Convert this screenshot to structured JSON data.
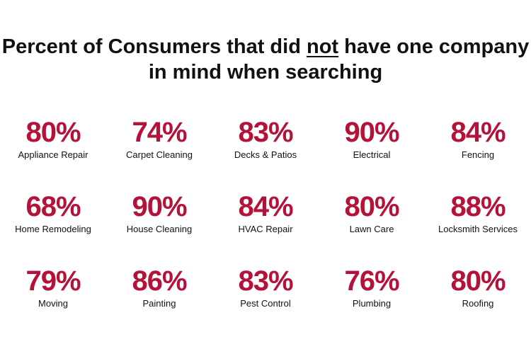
{
  "chart_data": {
    "type": "table",
    "title_parts": {
      "before": "Percent of Consumers that did ",
      "emphasis": "not",
      "after": " have one company in mind when searching"
    },
    "unit": "%",
    "categories": [
      "Appliance Repair",
      "Carpet Cleaning",
      "Decks & Patios",
      "Electrical",
      "Fencing",
      "Home Remodeling",
      "House Cleaning",
      "HVAC Repair",
      "Lawn Care",
      "Locksmith Services",
      "Moving",
      "Painting",
      "Pest Control",
      "Plumbing",
      "Roofing"
    ],
    "values": [
      80,
      74,
      83,
      90,
      84,
      68,
      90,
      84,
      80,
      88,
      79,
      86,
      83,
      76,
      80
    ],
    "value_color": "#b5123a"
  }
}
